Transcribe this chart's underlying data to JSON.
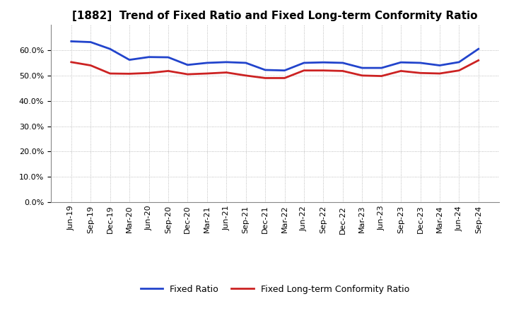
{
  "title": "[1882]  Trend of Fixed Ratio and Fixed Long-term Conformity Ratio",
  "x_labels": [
    "Jun-19",
    "Sep-19",
    "Dec-19",
    "Mar-20",
    "Jun-20",
    "Sep-20",
    "Dec-20",
    "Mar-21",
    "Jun-21",
    "Sep-21",
    "Dec-21",
    "Mar-22",
    "Jun-22",
    "Sep-22",
    "Dec-22",
    "Mar-23",
    "Jun-23",
    "Sep-23",
    "Dec-23",
    "Mar-24",
    "Jun-24",
    "Sep-24"
  ],
  "fixed_ratio": [
    0.635,
    0.632,
    0.605,
    0.562,
    0.573,
    0.572,
    0.542,
    0.55,
    0.553,
    0.55,
    0.522,
    0.52,
    0.55,
    0.552,
    0.55,
    0.53,
    0.53,
    0.552,
    0.55,
    0.54,
    0.553,
    0.605
  ],
  "fixed_lt_ratio": [
    0.553,
    0.54,
    0.508,
    0.507,
    0.51,
    0.518,
    0.505,
    0.508,
    0.512,
    0.5,
    0.49,
    0.49,
    0.52,
    0.52,
    0.518,
    0.5,
    0.498,
    0.518,
    0.51,
    0.508,
    0.52,
    0.56
  ],
  "fixed_ratio_color": "#2244cc",
  "fixed_lt_ratio_color": "#cc2222",
  "background_color": "#ffffff",
  "grid_color": "#aaaaaa",
  "ylim": [
    0.0,
    0.7
  ],
  "yticks": [
    0.0,
    0.1,
    0.2,
    0.3,
    0.4,
    0.5,
    0.6
  ],
  "legend_fixed_ratio": "Fixed Ratio",
  "legend_fixed_lt_ratio": "Fixed Long-term Conformity Ratio",
  "title_fontsize": 11,
  "tick_fontsize": 8,
  "legend_fontsize": 9
}
